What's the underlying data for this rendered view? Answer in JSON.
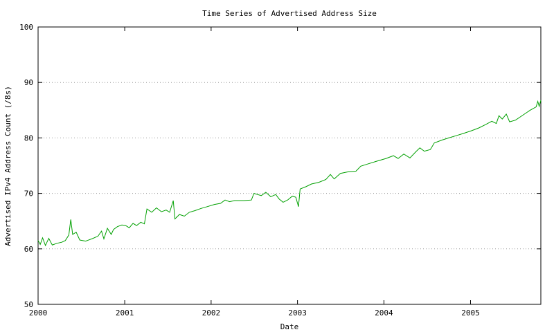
{
  "chart_data": {
    "type": "line",
    "title": "Time Series of Advertised Address Size",
    "xlabel": "Date",
    "ylabel": "Advertised IPv4 Address Count (/8s)",
    "xlim": [
      "2000-01-01",
      "2005-10-25"
    ],
    "ylim": [
      50,
      100
    ],
    "x_ticks": [
      {
        "date": "2000-01-01",
        "label": "2000"
      },
      {
        "date": "2001-01-01",
        "label": "2001"
      },
      {
        "date": "2002-01-01",
        "label": "2002"
      },
      {
        "date": "2003-01-01",
        "label": "2003"
      },
      {
        "date": "2004-01-01",
        "label": "2004"
      },
      {
        "date": "2005-01-01",
        "label": "2005"
      }
    ],
    "y_ticks": [
      50,
      60,
      70,
      80,
      90,
      100
    ],
    "grid": "horizontal dotted",
    "series": [
      {
        "color": "#00a000",
        "points": [
          [
            "2000-01-01",
            61.5
          ],
          [
            "2000-01-10",
            60.8
          ],
          [
            "2000-01-20",
            62.0
          ],
          [
            "2000-02-01",
            60.6
          ],
          [
            "2000-02-15",
            61.9
          ],
          [
            "2000-03-01",
            60.7
          ],
          [
            "2000-03-20",
            61.0
          ],
          [
            "2000-04-10",
            61.2
          ],
          [
            "2000-04-25",
            61.5
          ],
          [
            "2000-05-10",
            62.5
          ],
          [
            "2000-05-18",
            65.3
          ],
          [
            "2000-05-26",
            62.6
          ],
          [
            "2000-06-10",
            63.0
          ],
          [
            "2000-06-25",
            61.6
          ],
          [
            "2000-07-20",
            61.4
          ],
          [
            "2000-08-20",
            61.9
          ],
          [
            "2000-09-10",
            62.3
          ],
          [
            "2000-09-25",
            63.2
          ],
          [
            "2000-10-05",
            61.8
          ],
          [
            "2000-10-20",
            63.7
          ],
          [
            "2000-11-05",
            62.6
          ],
          [
            "2000-11-15",
            63.5
          ],
          [
            "2000-12-01",
            64.0
          ],
          [
            "2000-12-20",
            64.3
          ],
          [
            "2001-01-05",
            64.2
          ],
          [
            "2001-01-20",
            63.8
          ],
          [
            "2001-02-05",
            64.6
          ],
          [
            "2001-02-20",
            64.2
          ],
          [
            "2001-03-10",
            64.8
          ],
          [
            "2001-03-25",
            64.5
          ],
          [
            "2001-04-05",
            67.2
          ],
          [
            "2001-04-25",
            66.6
          ],
          [
            "2001-05-15",
            67.4
          ],
          [
            "2001-06-05",
            66.7
          ],
          [
            "2001-06-25",
            67.0
          ],
          [
            "2001-07-10",
            66.6
          ],
          [
            "2001-07-25",
            68.7
          ],
          [
            "2001-08-01",
            65.4
          ],
          [
            "2001-08-20",
            66.2
          ],
          [
            "2001-09-10",
            65.9
          ],
          [
            "2001-10-01",
            66.6
          ],
          [
            "2001-10-25",
            66.9
          ],
          [
            "2001-11-20",
            67.3
          ],
          [
            "2001-12-15",
            67.6
          ],
          [
            "2002-01-15",
            68.0
          ],
          [
            "2002-02-10",
            68.2
          ],
          [
            "2002-03-01",
            68.8
          ],
          [
            "2002-03-20",
            68.5
          ],
          [
            "2002-04-10",
            68.7
          ],
          [
            "2002-05-20",
            68.7
          ],
          [
            "2002-06-20",
            68.8
          ],
          [
            "2002-07-01",
            70.0
          ],
          [
            "2002-08-01",
            69.6
          ],
          [
            "2002-08-20",
            70.2
          ],
          [
            "2002-09-10",
            69.4
          ],
          [
            "2002-10-01",
            69.8
          ],
          [
            "2002-10-15",
            69.0
          ],
          [
            "2002-11-01",
            68.4
          ],
          [
            "2002-11-20",
            68.8
          ],
          [
            "2002-12-10",
            69.5
          ],
          [
            "2002-12-25",
            69.3
          ],
          [
            "2003-01-05",
            67.6
          ],
          [
            "2003-01-12",
            70.8
          ],
          [
            "2003-02-05",
            71.2
          ],
          [
            "2003-03-01",
            71.7
          ],
          [
            "2003-04-01",
            72.0
          ],
          [
            "2003-05-01",
            72.5
          ],
          [
            "2003-05-20",
            73.4
          ],
          [
            "2003-06-05",
            72.6
          ],
          [
            "2003-07-01",
            73.6
          ],
          [
            "2003-08-05",
            73.9
          ],
          [
            "2003-09-05",
            74.0
          ],
          [
            "2003-09-25",
            74.9
          ],
          [
            "2003-11-01",
            75.4
          ],
          [
            "2003-12-01",
            75.8
          ],
          [
            "2004-01-10",
            76.3
          ],
          [
            "2004-02-10",
            76.8
          ],
          [
            "2004-03-01",
            76.3
          ],
          [
            "2004-03-25",
            77.1
          ],
          [
            "2004-04-20",
            76.4
          ],
          [
            "2004-05-15",
            77.5
          ],
          [
            "2004-06-01",
            78.2
          ],
          [
            "2004-06-20",
            77.6
          ],
          [
            "2004-07-15",
            77.9
          ],
          [
            "2004-08-01",
            79.1
          ],
          [
            "2004-09-01",
            79.6
          ],
          [
            "2004-10-01",
            80.0
          ],
          [
            "2004-11-01",
            80.4
          ],
          [
            "2004-12-01",
            80.8
          ],
          [
            "2005-01-05",
            81.3
          ],
          [
            "2005-02-05",
            81.8
          ],
          [
            "2005-03-05",
            82.4
          ],
          [
            "2005-04-01",
            83.0
          ],
          [
            "2005-04-20",
            82.6
          ],
          [
            "2005-05-01",
            84.0
          ],
          [
            "2005-05-15",
            83.4
          ],
          [
            "2005-06-01",
            84.3
          ],
          [
            "2005-06-15",
            82.9
          ],
          [
            "2005-07-10",
            83.2
          ],
          [
            "2005-08-10",
            84.1
          ],
          [
            "2005-09-10",
            85.0
          ],
          [
            "2005-10-05",
            85.6
          ],
          [
            "2005-10-12",
            86.6
          ],
          [
            "2005-10-18",
            85.7
          ],
          [
            "2005-10-25",
            86.8
          ]
        ]
      }
    ]
  }
}
